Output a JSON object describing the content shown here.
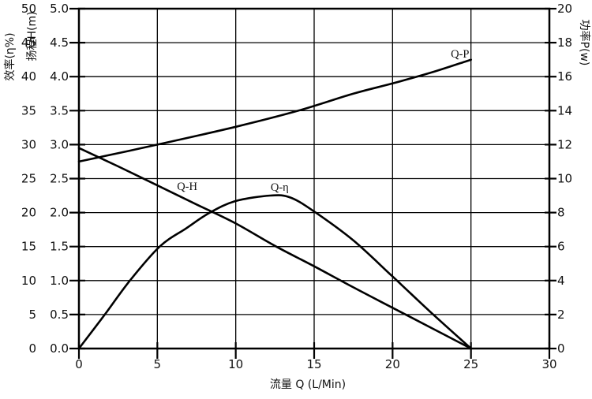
{
  "colors": {
    "background": "#ffffff",
    "line": "#000000",
    "grid": "#000000",
    "text": "#111111"
  },
  "chart_data": {
    "type": "line",
    "title": "",
    "xlabel": "流量 Q (L/Min)",
    "x_range": [
      0,
      30
    ],
    "x_ticks": [
      "0",
      "5",
      "10",
      "15",
      "20",
      "25",
      "30"
    ],
    "grid": "on",
    "legend_position": "inline-labels",
    "axes": {
      "eta": {
        "label": "效率(η%)",
        "side": "left-outer",
        "range": [
          0,
          50
        ],
        "ticks": [
          "50",
          "45",
          "40",
          "35",
          "30",
          "25",
          "20",
          "15",
          "10",
          "5",
          "0"
        ]
      },
      "H": {
        "label": "扬程H(m)",
        "side": "left-inner",
        "range": [
          0,
          5
        ],
        "ticks": [
          "5.0",
          "4.5",
          "4.0",
          "3.5",
          "3.0",
          "2.5",
          "2.0",
          "1.5",
          "1.0",
          "0.5",
          "0.0"
        ]
      },
      "P": {
        "label": "功率P(w)",
        "side": "right",
        "range": [
          0,
          20
        ],
        "ticks": [
          "20",
          "18",
          "16",
          "14",
          "12",
          "10",
          "8",
          "6",
          "4",
          "2",
          "0"
        ]
      }
    },
    "series": [
      {
        "name": "Q-H",
        "axis": "H",
        "points": [
          [
            0,
            2.95
          ],
          [
            2.5,
            2.68
          ],
          [
            5,
            2.4
          ],
          [
            7.5,
            2.12
          ],
          [
            10,
            1.84
          ],
          [
            12.5,
            1.51
          ],
          [
            15,
            1.21
          ],
          [
            17.5,
            0.9
          ],
          [
            20,
            0.6
          ],
          [
            22.5,
            0.3
          ],
          [
            25,
            0
          ]
        ]
      },
      {
        "name": "Q-η",
        "axis": "eta",
        "points": [
          [
            0,
            0
          ],
          [
            1.65,
            5
          ],
          [
            3.25,
            10
          ],
          [
            5.15,
            15
          ],
          [
            6.85,
            17.7
          ],
          [
            8.35,
            20
          ],
          [
            10,
            21.7
          ],
          [
            12.2,
            22.5
          ],
          [
            13.5,
            22.2
          ],
          [
            15.1,
            20
          ],
          [
            17.5,
            15.9
          ],
          [
            20,
            10.6
          ],
          [
            22.5,
            5.2
          ],
          [
            25,
            0
          ]
        ]
      },
      {
        "name": "Q-P",
        "axis": "P",
        "points": [
          [
            0,
            11
          ],
          [
            5,
            12
          ],
          [
            10,
            13.05
          ],
          [
            14,
            14
          ],
          [
            17.5,
            15
          ],
          [
            20,
            15.6
          ],
          [
            22.5,
            16.25
          ],
          [
            25,
            17
          ]
        ]
      }
    ],
    "annotations": [
      {
        "text": "Q-P",
        "x": 24.3,
        "axis": "P",
        "y": 17.35
      },
      {
        "text": "Q-H",
        "x": 6.9,
        "axis": "H",
        "y": 2.39
      },
      {
        "text": "Q-η",
        "x": 12.8,
        "axis": "H",
        "y": 2.38
      }
    ]
  }
}
